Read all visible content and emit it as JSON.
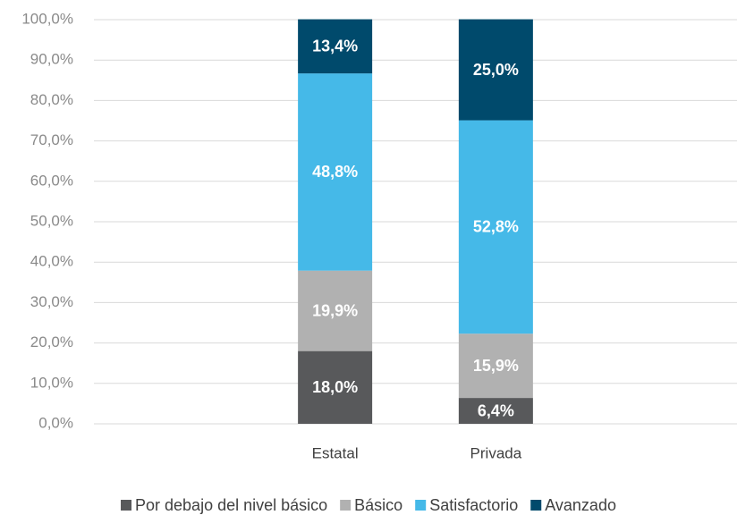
{
  "chart_data": {
    "type": "stacked_bar",
    "categories": [
      "Estatal",
      "Privada"
    ],
    "series": [
      {
        "name": "Por debajo del nivel básico",
        "color": "#58595b",
        "values": [
          18.0,
          6.4
        ],
        "value_labels": [
          "18,0%",
          "6,4%"
        ]
      },
      {
        "name": "Básico",
        "color": "#b1b1b1",
        "values": [
          19.9,
          15.9
        ],
        "value_labels": [
          "19,9%",
          "15,9%"
        ]
      },
      {
        "name": "Satisfactorio",
        "color": "#45b9e8",
        "values": [
          48.8,
          52.8
        ],
        "value_labels": [
          "48,8%",
          "52,8%"
        ]
      },
      {
        "name": "Avanzado",
        "color": "#004a6c",
        "values": [
          13.4,
          25.0
        ],
        "value_labels": [
          "13,4%",
          "25,0%"
        ]
      }
    ],
    "ylim": [
      0,
      100
    ],
    "yticks": [
      {
        "value": 0,
        "label": "0,0%"
      },
      {
        "value": 10,
        "label": "10,0%"
      },
      {
        "value": 20,
        "label": "20,0%"
      },
      {
        "value": 30,
        "label": "30,0%"
      },
      {
        "value": 40,
        "label": "40,0%"
      },
      {
        "value": 50,
        "label": "50,0%"
      },
      {
        "value": 60,
        "label": "60,0%"
      },
      {
        "value": 70,
        "label": "70,0%"
      },
      {
        "value": 80,
        "label": "80,0%"
      },
      {
        "value": 90,
        "label": "90,0%"
      },
      {
        "value": 100,
        "label": "100,0%"
      }
    ],
    "grid": true,
    "legend": "bottom"
  }
}
